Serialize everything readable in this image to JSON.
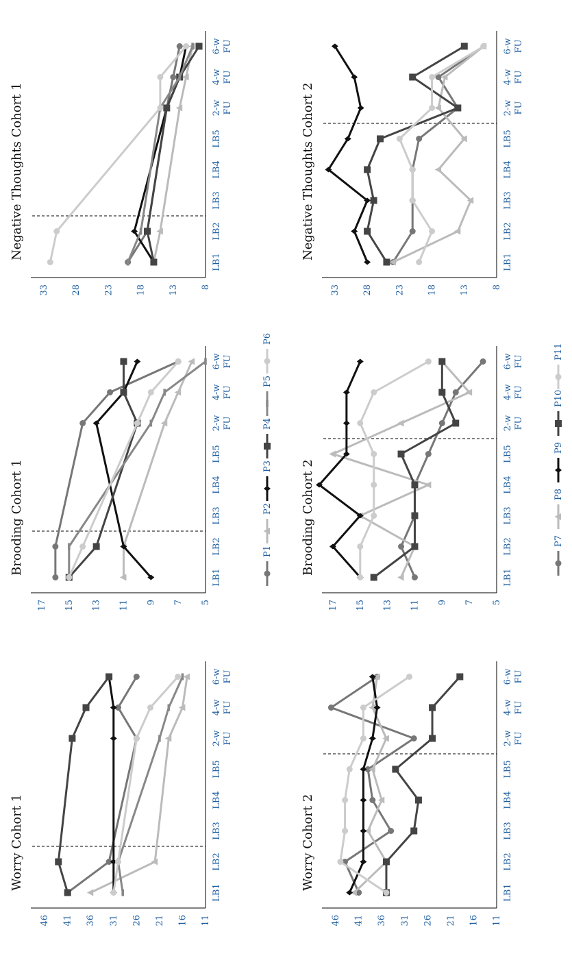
{
  "x_labels": [
    {
      "line1": "LB1",
      "line2": "",
      "color": "#1f5fa0"
    },
    {
      "line1": "LB2",
      "line2": "",
      "color": "#1f5fa0"
    },
    {
      "line1": "LB3",
      "line2": "",
      "color": "#1f5fa0"
    },
    {
      "line1": "LB4",
      "line2": "",
      "color": "#1f5fa0"
    },
    {
      "line1": "LB5",
      "line2": "",
      "color": "#1f5fa0"
    },
    {
      "line1": "2-w",
      "line2": "FU",
      "color": "#1f5fa0"
    },
    {
      "line1": "4-w",
      "line2": "FU",
      "color": "#1f5fa0"
    },
    {
      "line1": "6-w",
      "line2": "FU",
      "color": "#1f5fa0"
    }
  ],
  "series_styles": {
    "P1": {
      "color": "#777777",
      "marker": "circle"
    },
    "P2": {
      "color": "#bbbbbb",
      "marker": "triangle"
    },
    "P3": {
      "color": "#111111",
      "marker": "diamond"
    },
    "P4": {
      "color": "#444444",
      "marker": "square"
    },
    "P5": {
      "color": "#888888",
      "marker": "dash"
    },
    "P6": {
      "color": "#cccccc",
      "marker": "circle"
    },
    "P7": {
      "color": "#777777",
      "marker": "circle"
    },
    "P8": {
      "color": "#bbbbbb",
      "marker": "triangle"
    },
    "P9": {
      "color": "#111111",
      "marker": "diamond"
    },
    "P10": {
      "color": "#444444",
      "marker": "square"
    },
    "P11": {
      "color": "#cccccc",
      "marker": "circle"
    }
  },
  "legend_cohort1": [
    "P1",
    "P2",
    "P3",
    "P4",
    "P5",
    "P6"
  ],
  "legend_cohort2": [
    "P7",
    "P8",
    "P9",
    "P10",
    "P11"
  ],
  "chart_data": [
    {
      "id": "worry1",
      "type": "line",
      "title": "Worry Cohort 1",
      "yticks": [
        46,
        41,
        36,
        31,
        26,
        21,
        16,
        11
      ],
      "ylim": [
        11,
        49
      ],
      "phase_change_after": "LB2",
      "baseline_points": 2,
      "series": [
        {
          "name": "P1",
          "values": [
            41,
            32,
            26,
            30,
            26
          ]
        },
        {
          "name": "P2",
          "values": [
            36,
            22,
            19,
            16,
            15
          ]
        },
        {
          "name": "P3",
          "values": [
            31,
            31,
            31,
            31,
            32
          ]
        },
        {
          "name": "P4",
          "values": [
            41,
            43,
            40,
            37,
            32
          ]
        },
        {
          "name": "P5",
          "values": [
            29,
            30,
            21,
            19,
            16
          ]
        },
        {
          "name": "P6",
          "values": [
            31,
            30,
            26,
            23,
            17
          ]
        }
      ]
    },
    {
      "id": "brood1",
      "type": "line",
      "title": "Brooding Cohort 1",
      "yticks": [
        17,
        15,
        13,
        11,
        9,
        7,
        5
      ],
      "ylim": [
        5,
        17.8
      ],
      "phase_change_after": "LB2",
      "baseline_points": 2,
      "series": [
        {
          "name": "P1",
          "values": [
            16,
            16,
            14,
            12,
            7
          ]
        },
        {
          "name": "P2",
          "values": [
            11,
            11,
            8,
            7,
            6
          ]
        },
        {
          "name": "P3",
          "values": [
            9,
            11,
            13,
            11,
            10
          ]
        },
        {
          "name": "P4",
          "values": [
            15,
            13,
            10,
            11,
            11
          ]
        },
        {
          "name": "P5",
          "values": [
            15,
            15,
            9,
            8,
            5
          ]
        },
        {
          "name": "P6",
          "values": [
            15,
            14,
            10,
            9,
            7
          ]
        }
      ]
    },
    {
      "id": "neg1",
      "type": "line",
      "title": "Negative Thoughts Cohort 1",
      "yticks": [
        33,
        28,
        23,
        18,
        13,
        8
      ],
      "ylim": [
        8,
        35
      ],
      "phase_change_after": "LB2",
      "baseline_points": 2,
      "series": [
        {
          "name": "P1",
          "values": [
            20,
            17,
            14,
            13,
            12
          ]
        },
        {
          "name": "P2",
          "values": [
            16,
            15,
            12,
            11,
            10
          ]
        },
        {
          "name": "P3",
          "values": [
            16,
            19,
            14,
            12,
            11
          ]
        },
        {
          "name": "P4",
          "values": [
            16,
            17,
            14,
            12,
            9
          ]
        },
        {
          "name": "P5",
          "values": [
            20,
            18,
            15,
            12,
            10
          ]
        },
        {
          "name": "P6",
          "values": [
            32,
            31,
            15,
            15,
            11
          ]
        }
      ]
    },
    {
      "id": "worry2",
      "type": "line",
      "title": "Worry Cohort 2",
      "yticks": [
        46,
        41,
        36,
        31,
        26,
        21,
        16,
        11
      ],
      "ylim": [
        11,
        49
      ],
      "phase_change_after": "LB5",
      "baseline_points": 5,
      "series": [
        {
          "name": "P7",
          "values": [
            41,
            44,
            34,
            38,
            39,
            29,
            47,
            37
          ]
        },
        {
          "name": "P8",
          "values": [
            42,
            35,
            39,
            36,
            38,
            35,
            38,
            37
          ]
        },
        {
          "name": "P9",
          "values": [
            43,
            40,
            40,
            40,
            40,
            38,
            37,
            38
          ]
        },
        {
          "name": "P10",
          "values": [
            35,
            35,
            29,
            28,
            33,
            25,
            25,
            19
          ]
        },
        {
          "name": "P11",
          "values": [
            35,
            45,
            44,
            44,
            43,
            40,
            40,
            30
          ]
        }
      ]
    },
    {
      "id": "brood2",
      "type": "line",
      "title": "Brooding Cohort 2",
      "yticks": [
        17,
        15,
        13,
        11,
        9,
        7,
        5
      ],
      "ylim": [
        5,
        17.8
      ],
      "phase_change_after": "LB5",
      "baseline_points": 5,
      "series": [
        {
          "name": "P7",
          "values": [
            11,
            12,
            11,
            11,
            10,
            9,
            8,
            6
          ]
        },
        {
          "name": "P8",
          "values": [
            12,
            11,
            15,
            10,
            17,
            12,
            7,
            9
          ]
        },
        {
          "name": "P9",
          "values": [
            15,
            17,
            15,
            18,
            16,
            16,
            16,
            15
          ]
        },
        {
          "name": "P10",
          "values": [
            14,
            11,
            11,
            11,
            12,
            8,
            9,
            9
          ]
        },
        {
          "name": "P11",
          "values": [
            15,
            15,
            14,
            14,
            14,
            15,
            14,
            10
          ]
        }
      ]
    },
    {
      "id": "neg2",
      "type": "line",
      "title": "Negative Thoughts Cohort 2",
      "yticks": [
        33,
        28,
        23,
        18,
        13,
        8
      ],
      "ylim": [
        8,
        35
      ],
      "phase_change_after": "LB5",
      "baseline_points": 5,
      "series": [
        {
          "name": "P7",
          "values": [
            24,
            21,
            21,
            21,
            20,
            14,
            17,
            10
          ]
        },
        {
          "name": "P8",
          "values": [
            24,
            14,
            12,
            17,
            13,
            17,
            16,
            10
          ]
        },
        {
          "name": "P9",
          "values": [
            28,
            30,
            28,
            34,
            31,
            29,
            30,
            33
          ]
        },
        {
          "name": "P10",
          "values": [
            25,
            28,
            27,
            28,
            26,
            14,
            21,
            13
          ]
        },
        {
          "name": "P11",
          "values": [
            20,
            18,
            21,
            21,
            23,
            18,
            18,
            10
          ]
        }
      ]
    }
  ]
}
